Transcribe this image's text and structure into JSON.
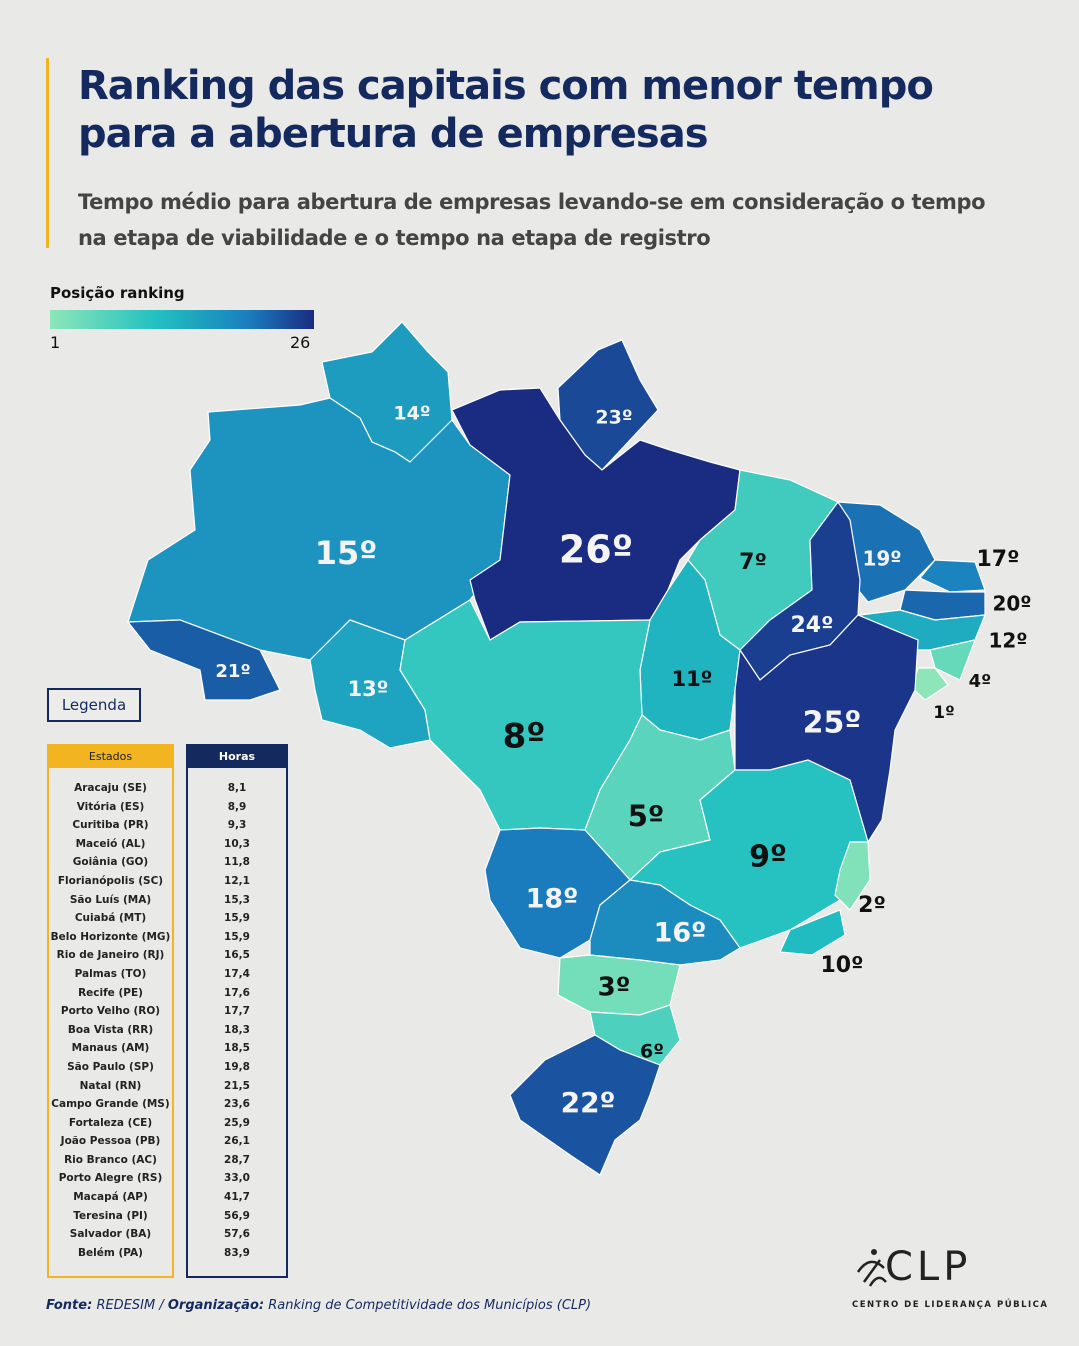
{
  "header": {
    "title": "Ranking das capitais com menor tempo para a abertura de empresas",
    "subtitle": "Tempo médio para abertura de empresas levando-se em consideração o tempo na etapa de viabilidade e o tempo na etapa de registro"
  },
  "scale": {
    "title": "Posição ranking",
    "min_label": "1",
    "max_label": "26",
    "colors": [
      "#8ee6b8",
      "#22c1c1",
      "#1a7fbf",
      "#1a2b82"
    ]
  },
  "map": {
    "states": [
      {
        "code": "RR",
        "label": "14º",
        "rank": 14
      },
      {
        "code": "AP",
        "label": "23º",
        "rank": 23
      },
      {
        "code": "AM",
        "label": "15º",
        "rank": 15
      },
      {
        "code": "PA",
        "label": "26º",
        "rank": 26
      },
      {
        "code": "MA",
        "label": "7º",
        "rank": 7
      },
      {
        "code": "CE",
        "label": "19º",
        "rank": 19
      },
      {
        "code": "RN",
        "label": "17º",
        "rank": 17
      },
      {
        "code": "PB",
        "label": "20º",
        "rank": 20
      },
      {
        "code": "PE",
        "label": "12º",
        "rank": 12
      },
      {
        "code": "AL",
        "label": "4º",
        "rank": 4
      },
      {
        "code": "SE",
        "label": "1º",
        "rank": 1
      },
      {
        "code": "PI",
        "label": "24º",
        "rank": 24
      },
      {
        "code": "TO",
        "label": "11º",
        "rank": 11
      },
      {
        "code": "BA",
        "label": "25º",
        "rank": 25
      },
      {
        "code": "AC",
        "label": "21º",
        "rank": 21
      },
      {
        "code": "RO",
        "label": "13º",
        "rank": 13
      },
      {
        "code": "MT",
        "label": "8º",
        "rank": 8
      },
      {
        "code": "GO",
        "label": "5º",
        "rank": 5
      },
      {
        "code": "MG",
        "label": "9º",
        "rank": 9
      },
      {
        "code": "ES",
        "label": "2º",
        "rank": 2
      },
      {
        "code": "RJ",
        "label": "10º",
        "rank": 10
      },
      {
        "code": "MS",
        "label": "18º",
        "rank": 18
      },
      {
        "code": "SP",
        "label": "16º",
        "rank": 16
      },
      {
        "code": "PR",
        "label": "3º",
        "rank": 3
      },
      {
        "code": "SC",
        "label": "6º",
        "rank": 6
      },
      {
        "code": "RS",
        "label": "22º",
        "rank": 22
      }
    ]
  },
  "legend": {
    "button_label": "Legenda",
    "states_header": "Estados",
    "hours_header": "Horas",
    "rows": [
      {
        "state": "Aracaju (SE)",
        "hours": "8,1"
      },
      {
        "state": "Vitória (ES)",
        "hours": "8,9"
      },
      {
        "state": "Curitiba (PR)",
        "hours": "9,3"
      },
      {
        "state": "Maceió (AL)",
        "hours": "10,3"
      },
      {
        "state": "Goiânia (GO)",
        "hours": "11,8"
      },
      {
        "state": "Florianópolis (SC)",
        "hours": "12,1"
      },
      {
        "state": "São Luís (MA)",
        "hours": "15,3"
      },
      {
        "state": "Cuiabá (MT)",
        "hours": "15,9"
      },
      {
        "state": "Belo Horizonte (MG)",
        "hours": "15,9"
      },
      {
        "state": "Rio de Janeiro (RJ)",
        "hours": "16,5"
      },
      {
        "state": "Palmas (TO)",
        "hours": "17,4"
      },
      {
        "state": "Recife (PE)",
        "hours": "17,6"
      },
      {
        "state": "Porto Velho (RO)",
        "hours": "17,7"
      },
      {
        "state": "Boa Vista (RR)",
        "hours": "18,3"
      },
      {
        "state": "Manaus (AM)",
        "hours": "18,5"
      },
      {
        "state": "São Paulo (SP)",
        "hours": "19,8"
      },
      {
        "state": "Natal (RN)",
        "hours": "21,5"
      },
      {
        "state": "Campo Grande (MS)",
        "hours": "23,6"
      },
      {
        "state": "Fortaleza (CE)",
        "hours": "25,9"
      },
      {
        "state": "João Pessoa (PB)",
        "hours": "26,1"
      },
      {
        "state": "Rio Branco (AC)",
        "hours": "28,7"
      },
      {
        "state": "Porto Alegre (RS)",
        "hours": "33,0"
      },
      {
        "state": "Macapá (AP)",
        "hours": "41,7"
      },
      {
        "state": "Teresina (PI)",
        "hours": "56,9"
      },
      {
        "state": "Salvador (BA)",
        "hours": "57,6"
      },
      {
        "state": "Belém (PA)",
        "hours": "83,9"
      }
    ]
  },
  "footer": {
    "source_label": "Fonte:",
    "source_value": "REDESIM",
    "separator": " / ",
    "org_label": "Organização:",
    "org_value": "Ranking de Competitividade dos Municípios (CLP)"
  },
  "logo": {
    "text": "CLP",
    "subtitle": "CENTRO DE LIDERANÇA PÚBLICA"
  }
}
